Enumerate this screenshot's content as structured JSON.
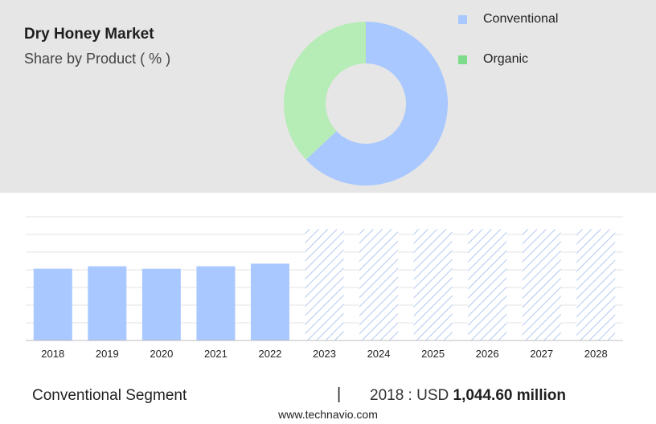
{
  "title": "Dry Honey Market",
  "subtitle": "Share by Product ( % )",
  "colors": {
    "conventional": "#a8c8ff",
    "organic_donut": "#b6ecb6",
    "organic_legend": "#7ddc8a",
    "panel": "#e6e6e6",
    "forecast_hatch": "#b4c8f0"
  },
  "legend": [
    {
      "label": "Conventional"
    },
    {
      "label": "Organic"
    }
  ],
  "chart_data": [
    {
      "type": "pie",
      "donut": true,
      "categories": [
        "Conventional",
        "Organic"
      ],
      "values": [
        63,
        37
      ]
    },
    {
      "type": "bar",
      "categories": [
        "2018",
        "2019",
        "2020",
        "2021",
        "2022",
        "2023",
        "2024",
        "2025",
        "2026",
        "2027",
        "2028"
      ],
      "values": [
        1044.6,
        1080,
        1044,
        1080,
        1118,
        1620,
        1620,
        1620,
        1620,
        1620,
        1620
      ],
      "forecast_from": "2023",
      "ylim": [
        0,
        1800
      ],
      "grid": true
    }
  ],
  "footer": {
    "segment": "Conventional Segment",
    "separator": "|",
    "year_label": "2018 : USD",
    "value_text": "1,044.60 million",
    "url": "www.technavio.com"
  }
}
